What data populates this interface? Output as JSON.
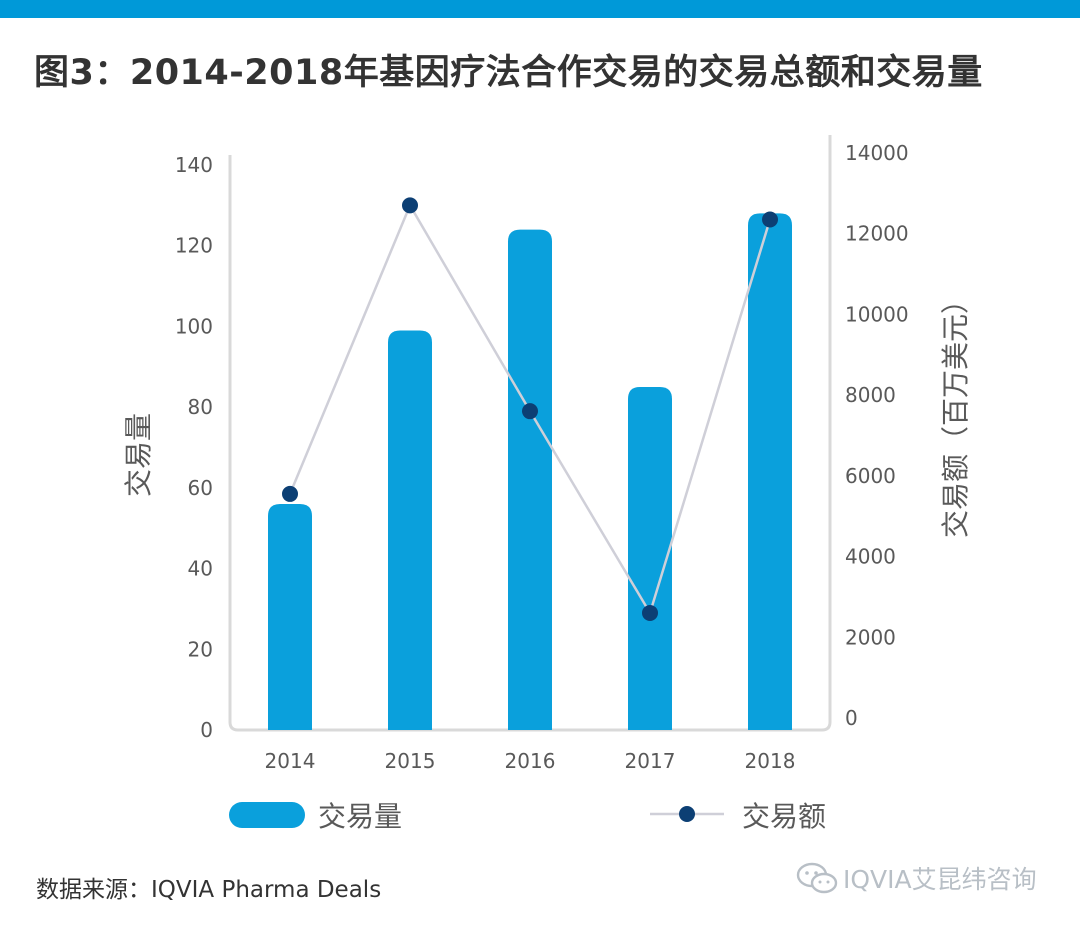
{
  "title": "图3：2014-2018年基因疗法合作交易的交易总额和交易量",
  "source": "数据来源：IQVIA Pharma Deals",
  "watermark": "IQVIA艾昆纬咨询",
  "colors": {
    "top_bar": "#0099d8",
    "bar": "#0aa0dc",
    "line": "#cfcfd8",
    "marker": "#0c3f74",
    "axis": "#d9d9d9",
    "tick_text": "#595959",
    "label_text": "#595959"
  },
  "chart_data": {
    "type": "bar",
    "title": "图3：2014-2018年基因疗法合作交易的交易总额和交易量",
    "categories": [
      "2014",
      "2015",
      "2016",
      "2017",
      "2018"
    ],
    "xlabel": "",
    "ylabel": "交易量",
    "y2label": "交易额（百万美元）",
    "ylim": [
      0,
      140
    ],
    "y2lim": [
      0,
      14000
    ],
    "yticks": [
      "0",
      "20",
      "40",
      "60",
      "80",
      "100",
      "120",
      "140"
    ],
    "y2ticks": [
      "0",
      "2000",
      "4000",
      "6000",
      "8000",
      "10000",
      "12000",
      "14000"
    ],
    "grid": false,
    "legend_position": "bottom",
    "series": [
      {
        "name": "交易量",
        "type": "bar",
        "axis": "left",
        "values": [
          56,
          99,
          124,
          85,
          128
        ]
      },
      {
        "name": "交易额",
        "type": "line",
        "axis": "right",
        "values": [
          5850,
          13000,
          7900,
          2900,
          12650
        ]
      }
    ]
  }
}
